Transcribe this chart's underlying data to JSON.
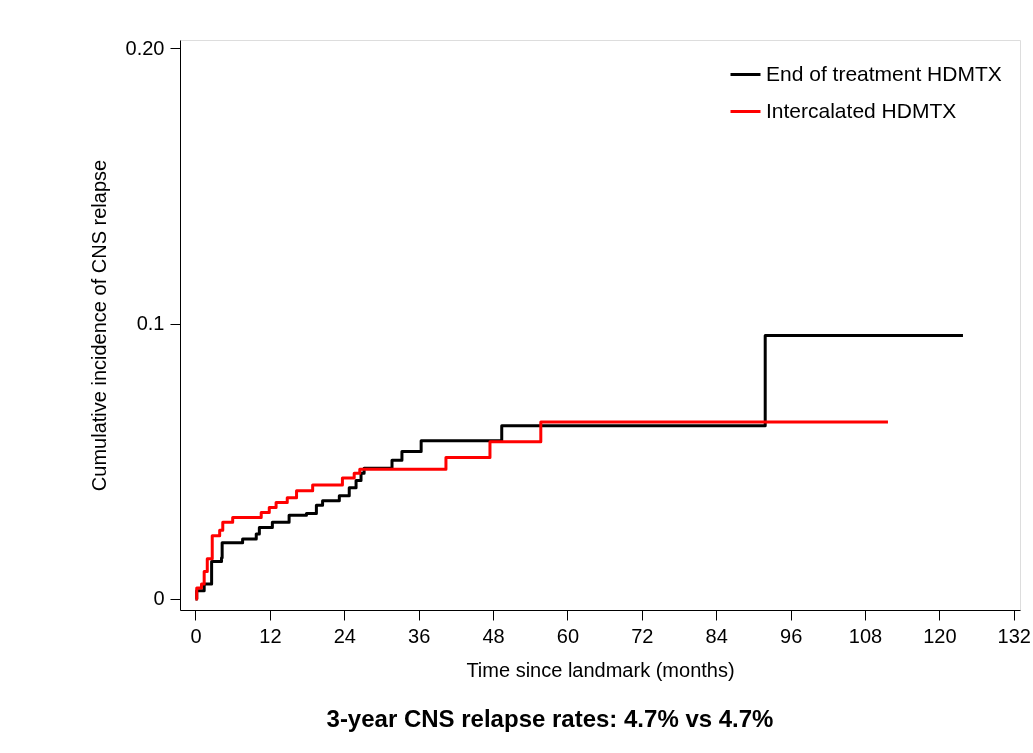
{
  "chart_data": {
    "type": "step",
    "xlabel": "Time since landmark (months)",
    "ylabel": "Cumulative incidence of CNS relapse",
    "xlim": [
      -2.5,
      133
    ],
    "ylim": [
      -0.004,
      0.203
    ],
    "xticks": [
      0,
      12,
      24,
      36,
      48,
      60,
      72,
      84,
      96,
      108,
      120,
      132
    ],
    "yticks": [
      0,
      0.1,
      {
        "value": 0.2,
        "label": "0.20"
      }
    ],
    "grid": false,
    "legend": "top right",
    "annotations": [
      "3-year CNS relapse rates: 4.7% vs 4.7%"
    ],
    "series": [
      {
        "name": "End of treatment HDMTX",
        "color": "#000000",
        "x": [
          0,
          0.2,
          1.4,
          2.6,
          4.2,
          4.3,
          7.6,
          9.8,
          10.3,
          12.4,
          15.1,
          17.9,
          19.5,
          20.5,
          23.2,
          24.8,
          25.9,
          26.7,
          27.2,
          31.7,
          33.3,
          36.4,
          49.4,
          91.9,
          123.8
        ],
        "values": [
          0,
          0.003,
          0.0054,
          0.0136,
          0.015,
          0.0204,
          0.0218,
          0.0236,
          0.026,
          0.0279,
          0.0304,
          0.031,
          0.034,
          0.0357,
          0.0375,
          0.0404,
          0.043,
          0.0457,
          0.0475,
          0.0504,
          0.0536,
          0.0575,
          0.0629,
          0.0957,
          0.0957
        ]
      },
      {
        "name": "Intercalated HDMTX",
        "color": "#ff0000",
        "x": [
          0,
          0.2,
          0.97,
          1.4,
          1.9,
          2.7,
          3.9,
          4.4,
          6.0,
          10.6,
          11.9,
          13.0,
          14.8,
          16.3,
          18.9,
          23.7,
          25.6,
          26.5,
          40.4,
          47.5,
          55.7,
          111.7
        ],
        "values": [
          0,
          0.004,
          0.0054,
          0.01,
          0.0146,
          0.023,
          0.025,
          0.0279,
          0.0296,
          0.0314,
          0.0332,
          0.035,
          0.0368,
          0.0393,
          0.0414,
          0.0439,
          0.0457,
          0.0471,
          0.0514,
          0.0571,
          0.0643,
          0.0643
        ]
      }
    ]
  }
}
